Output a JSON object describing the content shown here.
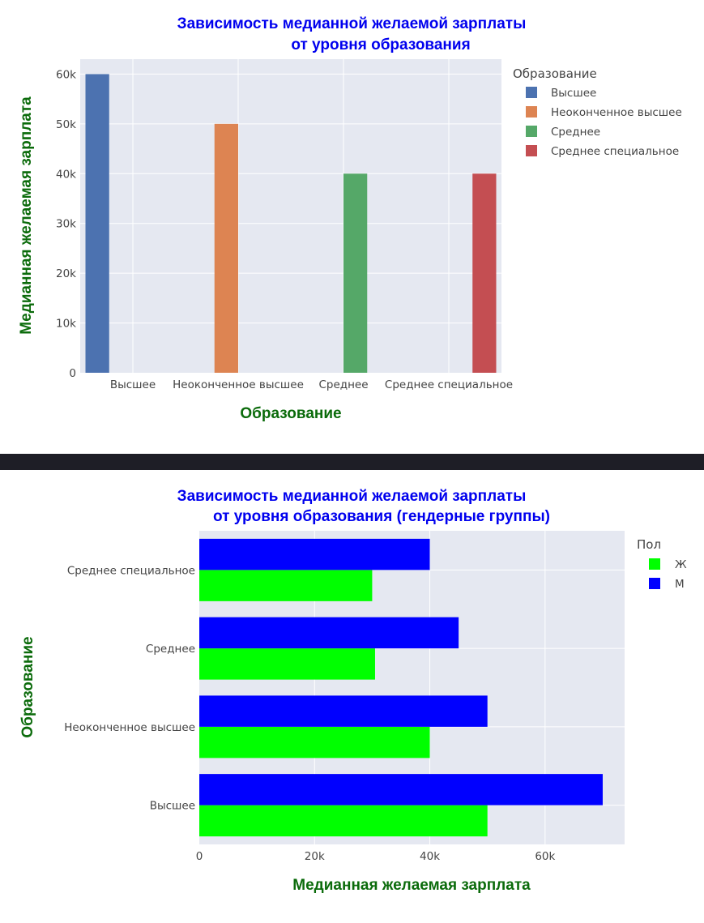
{
  "chart_data": [
    {
      "type": "bar",
      "orientation": "vertical",
      "title": [
        "Зависимость медианной желаемой зарплаты",
        "от уровня образования"
      ],
      "xlabel": "Образование",
      "ylabel": "Медианная желаемая зарплата",
      "categories": [
        "Высшее",
        "Неоконченное высшее",
        "Среднее",
        "Среднее специальное"
      ],
      "series": [
        {
          "name": "Высшее",
          "color": "#4c72b0",
          "values": [
            60000,
            null,
            null,
            null
          ]
        },
        {
          "name": "Неоконченное высшее",
          "color": "#dd8452",
          "values": [
            null,
            50000,
            null,
            null
          ]
        },
        {
          "name": "Среднее",
          "color": "#55a868",
          "values": [
            null,
            null,
            40000,
            null
          ]
        },
        {
          "name": "Среднее специальное",
          "color": "#c44e52",
          "values": [
            null,
            null,
            null,
            40000
          ]
        }
      ],
      "ylim": [
        0,
        63000
      ],
      "yticks": [
        0,
        10000,
        20000,
        30000,
        40000,
        50000,
        60000
      ],
      "ytick_labels": [
        "0",
        "10k",
        "20k",
        "30k",
        "40k",
        "50k",
        "60k"
      ],
      "legend_title": "Образование",
      "legend_position": "top-right",
      "grid": true
    },
    {
      "type": "bar",
      "orientation": "horizontal",
      "title": [
        "Зависимость медианной желаемой зарплаты",
        "от уровня образования (гендерные группы)"
      ],
      "xlabel": "Медианная желаемая зарплата",
      "ylabel": "Образование",
      "categories": [
        "Высшее",
        "Неоконченное высшее",
        "Среднее",
        "Среднее специальное"
      ],
      "series": [
        {
          "name": "Ж",
          "color": "#00ff00",
          "values": [
            50000,
            40000,
            30500,
            30000
          ]
        },
        {
          "name": "М",
          "color": "#0000ff",
          "values": [
            70000,
            50000,
            45000,
            40000
          ]
        }
      ],
      "xlim": [
        0,
        73800
      ],
      "xticks": [
        0,
        20000,
        40000,
        60000
      ],
      "xtick_labels": [
        "0",
        "20k",
        "40k",
        "60k"
      ],
      "legend_title": "Пол",
      "legend_position": "top-right",
      "grid": true
    }
  ]
}
